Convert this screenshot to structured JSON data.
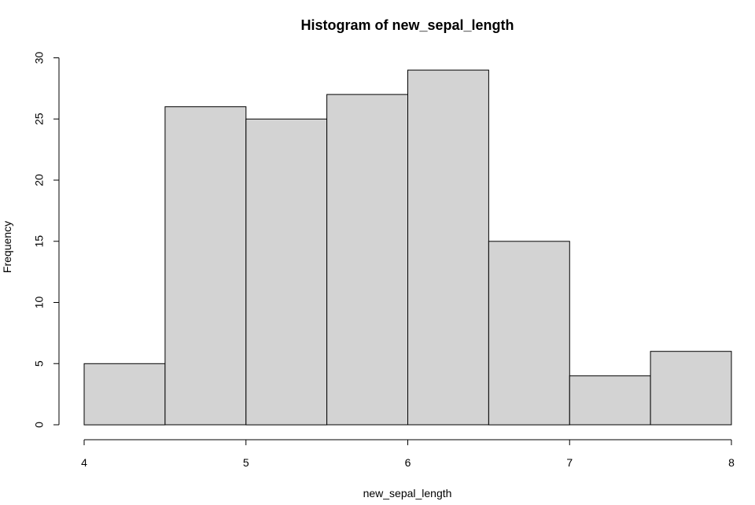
{
  "chart_data": {
    "type": "bar",
    "title": "Histogram of new_sepal_length",
    "xlabel": "new_sepal_length",
    "ylabel": "Frequency",
    "bin_edges": [
      4,
      4.5,
      5,
      5.5,
      6,
      6.5,
      7,
      7.5,
      8
    ],
    "values": [
      5,
      26,
      25,
      27,
      29,
      15,
      4,
      6
    ],
    "xlim": [
      4,
      8
    ],
    "ylim": [
      0,
      30
    ],
    "x_ticks": [
      4,
      5,
      6,
      7,
      8
    ],
    "y_ticks": [
      0,
      5,
      10,
      15,
      20,
      25,
      30
    ],
    "grid": false,
    "legend": "none",
    "colors": {
      "bar_fill": "#d3d3d3",
      "bar_stroke": "#000000"
    }
  }
}
